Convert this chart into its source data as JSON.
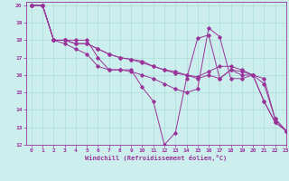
{
  "xlabel": "Windchill (Refroidissement éolien,°C)",
  "bg_color": "#cceeed",
  "grid_color": "#aaddda",
  "line_color": "#993399",
  "xlim": [
    -0.5,
    23
  ],
  "ylim": [
    12,
    20.2
  ],
  "xticks": [
    0,
    1,
    2,
    3,
    4,
    5,
    6,
    7,
    8,
    9,
    10,
    11,
    12,
    13,
    14,
    15,
    16,
    17,
    18,
    19,
    20,
    21,
    22,
    23
  ],
  "yticks": [
    12,
    13,
    14,
    15,
    16,
    17,
    18,
    19,
    20
  ],
  "series": [
    {
      "x": [
        0,
        1,
        2,
        3,
        4,
        5,
        6,
        7,
        8,
        9,
        10,
        11,
        12,
        13,
        14,
        15,
        16,
        17,
        18,
        19,
        20,
        21,
        22,
        23
      ],
      "y": [
        20,
        20,
        18,
        18,
        18,
        18,
        17,
        16.3,
        16.3,
        16.3,
        15.3,
        14.5,
        12,
        12.7,
        15.8,
        18.1,
        18.3,
        15.8,
        16.3,
        16.0,
        16.0,
        14.5,
        13.3,
        12.8
      ]
    },
    {
      "x": [
        0,
        1,
        2,
        3,
        4,
        5,
        6,
        7,
        8,
        9,
        10,
        11,
        12,
        13,
        14,
        15,
        16,
        17,
        18,
        19,
        20,
        21,
        22,
        23
      ],
      "y": [
        20,
        20,
        18,
        18,
        17.8,
        17.8,
        17.5,
        17.2,
        17.0,
        16.9,
        16.8,
        16.5,
        16.3,
        16.1,
        16.0,
        15.9,
        16.2,
        16.5,
        16.5,
        16.3,
        16.0,
        15.5,
        13.5,
        12.8
      ]
    },
    {
      "x": [
        0,
        1,
        2,
        3,
        4,
        5,
        6,
        7,
        8,
        9,
        10,
        11,
        12,
        13,
        14,
        15,
        16,
        17,
        18,
        19,
        20,
        21,
        22,
        23
      ],
      "y": [
        20,
        20,
        18,
        18,
        17.8,
        17.8,
        17.5,
        17.2,
        17.0,
        16.9,
        16.7,
        16.5,
        16.3,
        16.2,
        16.0,
        15.8,
        16.0,
        15.8,
        16.3,
        16.2,
        16.0,
        15.8,
        13.5,
        12.8
      ]
    },
    {
      "x": [
        0,
        1,
        2,
        3,
        4,
        5,
        6,
        7,
        8,
        9,
        10,
        11,
        12,
        13,
        14,
        15,
        16,
        17,
        18,
        19,
        20,
        21,
        22,
        23
      ],
      "y": [
        20,
        20,
        18,
        17.8,
        17.5,
        17.2,
        16.5,
        16.3,
        16.3,
        16.2,
        16.0,
        15.8,
        15.5,
        15.2,
        15.0,
        15.2,
        18.7,
        18.2,
        15.8,
        15.8,
        16.0,
        14.5,
        13.3,
        12.8
      ]
    }
  ]
}
